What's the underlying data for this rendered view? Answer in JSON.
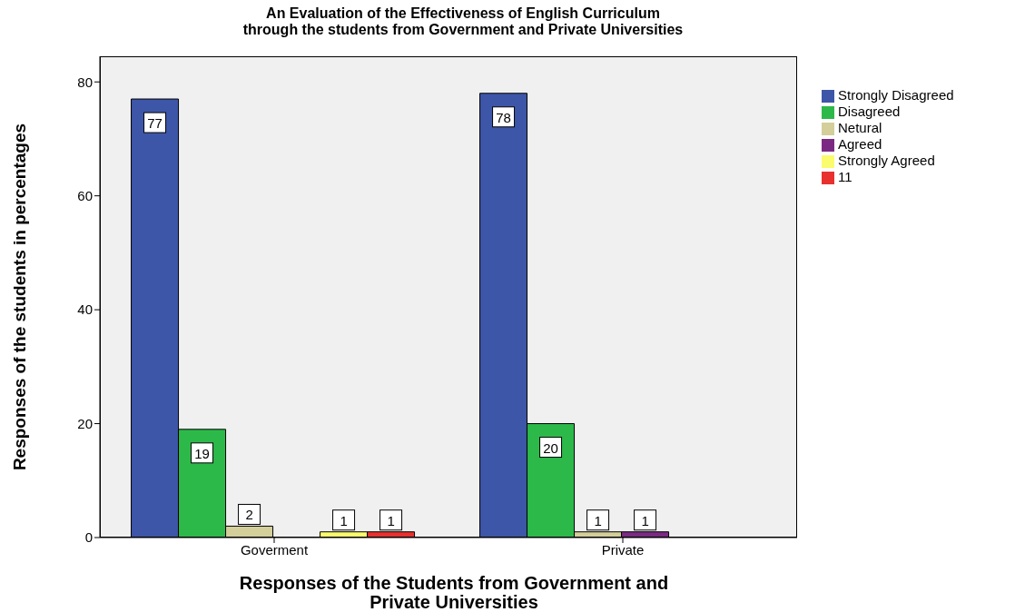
{
  "chart_data": {
    "type": "bar",
    "title": "An Evaluation of the Effectiveness of English Curriculum\nthrough the students from Government and Private Universities",
    "xlabel": "Responses of the Students from Government and\nPrivate Universities",
    "ylabel": "Responses of the students in percentages",
    "categories": [
      "Goverment",
      "Private"
    ],
    "series": [
      {
        "name": "Strongly Disagreed",
        "color": "#3e56a8",
        "values": [
          77,
          78
        ]
      },
      {
        "name": "Disagreed",
        "color": "#2db94a",
        "values": [
          19,
          20
        ]
      },
      {
        "name": "Netural",
        "color": "#d3ce9a",
        "values": [
          2,
          1
        ]
      },
      {
        "name": "Agreed",
        "color": "#7b2a83",
        "values": [
          null,
          1
        ]
      },
      {
        "name": "Strongly Agreed",
        "color": "#fbfb6e",
        "values": [
          1,
          null
        ]
      },
      {
        "name": "11",
        "color": "#e8312f",
        "values": [
          1,
          null
        ]
      }
    ],
    "ylim": [
      0,
      84.5
    ],
    "yticks": [
      0,
      20,
      40,
      60,
      80
    ],
    "grid": false,
    "legend": "top right",
    "data_labels": true
  }
}
